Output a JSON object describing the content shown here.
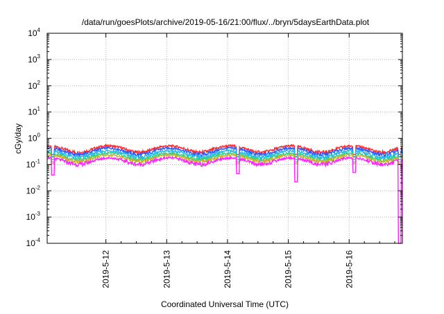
{
  "chart_data": {
    "type": "line",
    "title": "/data/run/goesPlots/archive/2019-05-16/21:00/flux/../bryn/5daysEarthData.plot",
    "xlabel": "Coordinated Universal Time (UTC)",
    "ylabel": "cGy/day",
    "yscale": "log",
    "ylim": [
      0.0001,
      10000
    ],
    "y_ticks": [
      {
        "value": 0.0001,
        "base": "10",
        "exp": "-4"
      },
      {
        "value": 0.001,
        "base": "10",
        "exp": "-3"
      },
      {
        "value": 0.01,
        "base": "10",
        "exp": "-2"
      },
      {
        "value": 0.1,
        "base": "10",
        "exp": "-1"
      },
      {
        "value": 1,
        "base": "10",
        "exp": "0"
      },
      {
        "value": 10,
        "base": "10",
        "exp": "1"
      },
      {
        "value": 100,
        "base": "10",
        "exp": "2"
      },
      {
        "value": 1000,
        "base": "10",
        "exp": "3"
      },
      {
        "value": 10000,
        "base": "10",
        "exp": "4"
      }
    ],
    "xlim": [
      "2019-05-11 00:50",
      "2019-05-16 21:00"
    ],
    "x_ticks": [
      "2019-5-12",
      "2019-5-13",
      "2019-5-14",
      "2019-5-15",
      "2019-5-16"
    ],
    "x_tick_values": [
      "2019-05-12",
      "2019-05-13",
      "2019-05-14",
      "2019-05-15",
      "2019-05-16"
    ],
    "grid": true,
    "legend": "none",
    "series": [
      {
        "color": "#ff2a2a",
        "baseline": 0.4
      },
      {
        "color": "#2a5cff",
        "baseline": 0.33
      },
      {
        "color": "#22b8e8",
        "baseline": 0.26
      },
      {
        "color": "#2fcf8a",
        "baseline": 0.21
      },
      {
        "color": "#c9b12a",
        "baseline": 0.18
      },
      {
        "color": "#ff22ff",
        "baseline": 0.14
      }
    ],
    "dips": [
      {
        "date": "2019-05-11 03:00",
        "value": 0.04
      },
      {
        "date": "2019-05-14 04:00",
        "value": 0.045
      },
      {
        "date": "2019-05-15 03:00",
        "value": 0.022
      },
      {
        "date": "2019-05-16 02:00",
        "value": 0.05
      },
      {
        "date": "2019-05-16 20:00",
        "value": 0.0001
      }
    ]
  }
}
